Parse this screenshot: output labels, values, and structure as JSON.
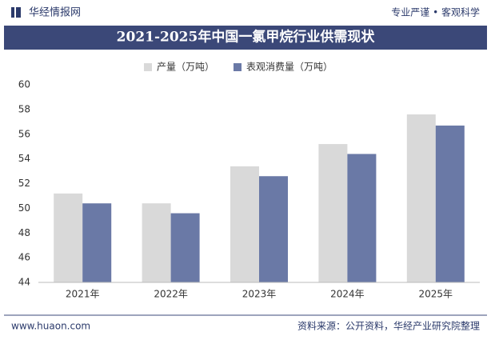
{
  "header": {
    "logo": "华经情报网",
    "slogan": "专业严谨 • 客观科学"
  },
  "chart_data": {
    "type": "bar",
    "title": "2021-2025年中国一氯甲烷行业供需现状",
    "categories": [
      "2021年",
      "2022年",
      "2023年",
      "2024年",
      "2025年"
    ],
    "series": [
      {
        "name": "产量（万吨）",
        "color": "#d9d9d9",
        "values": [
          51.2,
          50.4,
          53.4,
          55.2,
          57.6
        ]
      },
      {
        "name": "表观消费量（万吨）",
        "color": "#6a79a6",
        "values": [
          50.4,
          49.6,
          52.6,
          54.4,
          56.7
        ]
      }
    ],
    "ylim": [
      44,
      60
    ],
    "yticks": [
      44,
      46,
      48,
      50,
      52,
      54,
      56,
      58,
      60
    ],
    "grid": false,
    "legend": "top"
  },
  "footer": {
    "website": "www.huaon.com",
    "source": "资料来源：公开资料，华经产业研究院整理"
  }
}
